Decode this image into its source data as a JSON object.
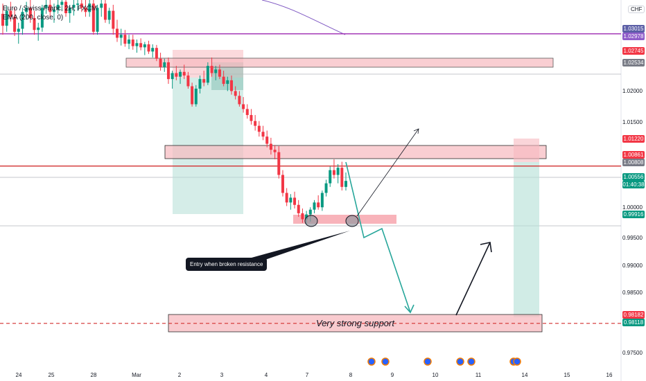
{
  "header": {
    "symbol_line": "Euro / Swiss Franc, 2H, FXCM",
    "indicator_line": "EMA (200, close, 0)",
    "currency": "CHF"
  },
  "annotations": {
    "entry_note": "Entry when broken resistance",
    "support_label": "Very strong support"
  },
  "price_labels": [
    {
      "text": "1.03015",
      "color": "#5b5ea6"
    },
    {
      "text": "1.02978",
      "color": "#8e5cc9"
    },
    {
      "text": "1.02745",
      "color": "#f23645"
    },
    {
      "text": "1.02534",
      "color": "#787b86"
    },
    {
      "text": "1.01220",
      "color": "#f23645"
    },
    {
      "text": "1.00861",
      "color": "#f23645"
    },
    {
      "text": "1.00808",
      "color": "#787b86"
    },
    {
      "text": "1.00556",
      "color": "#089981"
    },
    {
      "text": "01:40:38",
      "color": "#089981"
    },
    {
      "text": "0.99916",
      "color": "#089981"
    },
    {
      "text": "0.98182",
      "color": "#f23645"
    },
    {
      "text": "0.98118",
      "color": "#089981"
    }
  ],
  "chart_data": {
    "type": "candlestick",
    "y_ticks": [
      "1.02000",
      "1.01500",
      "1.00000",
      "0.99500",
      "0.99000",
      "0.98500",
      "0.97500"
    ],
    "x_ticks": [
      "24",
      "25",
      "28",
      "Mar",
      "2",
      "3",
      "4",
      "7",
      "8",
      "9",
      "10",
      "11",
      "14",
      "15",
      "16"
    ],
    "ylim": [
      0.9722,
      1.0358
    ],
    "candles": [
      [
        1.0335,
        1.0352,
        1.03,
        1.0315
      ],
      [
        1.0315,
        1.0348,
        1.0305,
        1.034
      ],
      [
        1.034,
        1.0355,
        1.0322,
        1.033
      ],
      [
        1.033,
        1.0345,
        1.0298,
        1.0305
      ],
      [
        1.0305,
        1.032,
        1.0285,
        1.031
      ],
      [
        1.031,
        1.0345,
        1.03,
        1.0338
      ],
      [
        1.0338,
        1.0355,
        1.0325,
        1.0345
      ],
      [
        1.0345,
        1.0358,
        1.032,
        1.0328
      ],
      [
        1.0328,
        1.034,
        1.03,
        1.0308
      ],
      [
        1.0308,
        1.032,
        1.029,
        1.0312
      ],
      [
        1.0312,
        1.035,
        1.0305,
        1.0345
      ],
      [
        1.0345,
        1.0358,
        1.0335,
        1.035
      ],
      [
        1.035,
        1.0358,
        1.033,
        1.0338
      ],
      [
        1.0338,
        1.0352,
        1.032,
        1.0342
      ],
      [
        1.0342,
        1.0358,
        1.0335,
        1.035
      ],
      [
        1.035,
        1.0358,
        1.034,
        1.0355
      ],
      [
        1.0355,
        1.0358,
        1.033,
        1.0336
      ],
      [
        1.0336,
        1.035,
        1.032,
        1.0345
      ],
      [
        1.0345,
        1.0358,
        1.0332,
        1.035
      ],
      [
        1.035,
        1.0358,
        1.034,
        1.0352
      ],
      [
        1.0352,
        1.0358,
        1.0338,
        1.0345
      ],
      [
        1.0345,
        1.0358,
        1.033,
        1.0338
      ],
      [
        1.0338,
        1.0358,
        1.033,
        1.0352
      ],
      [
        1.0352,
        1.0358,
        1.03,
        1.0305
      ],
      [
        1.0305,
        1.035,
        1.03,
        1.0345
      ],
      [
        1.0345,
        1.0358,
        1.033,
        1.0352
      ],
      [
        1.0352,
        1.0358,
        1.032,
        1.0325
      ],
      [
        1.0325,
        1.0345,
        1.0318,
        1.034
      ],
      [
        1.034,
        1.035,
        1.03,
        1.031
      ],
      [
        1.031,
        1.0325,
        1.0288,
        1.0295
      ],
      [
        1.0295,
        1.031,
        1.0282,
        1.03
      ],
      [
        1.03,
        1.0308,
        1.028,
        1.0285
      ],
      [
        1.0285,
        1.03,
        1.0276,
        1.0292
      ],
      [
        1.0292,
        1.03,
        1.0275,
        1.0281
      ],
      [
        1.0281,
        1.0292,
        1.027,
        1.0286
      ],
      [
        1.0286,
        1.0294,
        1.0274,
        1.0279
      ],
      [
        1.0279,
        1.0288,
        1.0266,
        1.0284
      ],
      [
        1.0284,
        1.029,
        1.0268,
        1.0272
      ],
      [
        1.0272,
        1.0284,
        1.0262,
        1.0278
      ],
      [
        1.0278,
        1.0283,
        1.0256,
        1.026
      ],
      [
        1.026,
        1.027,
        1.024,
        1.0246
      ],
      [
        1.0246,
        1.026,
        1.0238,
        1.0254
      ],
      [
        1.0254,
        1.0262,
        1.0218,
        1.0226
      ],
      [
        1.0226,
        1.024,
        1.021,
        1.0236
      ],
      [
        1.0236,
        1.0248,
        1.0224,
        1.023
      ],
      [
        1.023,
        1.0242,
        1.0218,
        1.0238
      ],
      [
        1.0238,
        1.025,
        1.0226,
        1.0232
      ],
      [
        1.0232,
        1.0238,
        1.021,
        1.0214
      ],
      [
        1.0214,
        1.022,
        1.018,
        1.0184
      ],
      [
        1.0184,
        1.0216,
        1.018,
        1.021
      ],
      [
        1.021,
        1.0232,
        1.0202,
        1.0226
      ],
      [
        1.0226,
        1.024,
        1.0214,
        1.022
      ],
      [
        1.022,
        1.0254,
        1.0216,
        1.0248
      ],
      [
        1.0248,
        1.0262,
        1.023,
        1.0236
      ],
      [
        1.0236,
        1.0248,
        1.0224,
        1.0242
      ],
      [
        1.0242,
        1.025,
        1.0226,
        1.023
      ],
      [
        1.023,
        1.024,
        1.0214,
        1.0218
      ],
      [
        1.0218,
        1.023,
        1.0206,
        1.0224
      ],
      [
        1.0224,
        1.0232,
        1.02,
        1.0206
      ],
      [
        1.0206,
        1.0214,
        1.0192,
        1.0198
      ],
      [
        1.0198,
        1.0206,
        1.018,
        1.0184
      ],
      [
        1.0184,
        1.0196,
        1.017,
        1.0176
      ],
      [
        1.0176,
        1.0184,
        1.016,
        1.0166
      ],
      [
        1.0166,
        1.0176,
        1.015,
        1.0156
      ],
      [
        1.0156,
        1.0166,
        1.014,
        1.0148
      ],
      [
        1.0148,
        1.0156,
        1.013,
        1.0138
      ],
      [
        1.0138,
        1.0148,
        1.0124,
        1.013
      ],
      [
        1.013,
        1.014,
        1.0112,
        1.0118
      ],
      [
        1.0118,
        1.0128,
        1.01,
        1.0108
      ],
      [
        1.0108,
        1.0116,
        1.0092,
        1.0104
      ],
      [
        1.0104,
        1.0114,
        1.006,
        1.0066
      ],
      [
        1.0066,
        1.0074,
        1.003,
        1.0036
      ],
      [
        1.0036,
        1.0044,
        1.0014,
        1.002
      ],
      [
        1.002,
        1.0034,
        1.0008,
        1.0028
      ],
      [
        1.0028,
        1.0038,
        1.001,
        1.0016
      ],
      [
        1.0016,
        1.0024,
        0.9996,
        1.0002
      ],
      [
        1.0002,
        1.001,
        0.9986,
        0.9992
      ],
      [
        0.9992,
        1.0006,
        0.9984,
        1.0
      ],
      [
        1.0,
        1.0012,
        0.9988,
        1.0008
      ],
      [
        1.0008,
        1.0024,
        1.0002,
        1.002
      ],
      [
        1.002,
        1.0032,
        1.0008,
        1.0012
      ],
      [
        1.0012,
        1.004,
        1.0006,
        1.0036
      ],
      [
        1.0036,
        1.0058,
        1.003,
        1.0052
      ],
      [
        1.0052,
        1.008,
        1.0046,
        1.0074
      ],
      [
        1.0074,
        1.0092,
        1.006,
        1.0066
      ],
      [
        1.0066,
        1.0084,
        1.0052,
        1.0078
      ],
      [
        1.0078,
        1.0088,
        1.004,
        1.0046
      ],
      [
        1.0046,
        1.007,
        1.004,
        1.0056
      ]
    ],
    "horizontal_lines": [
      {
        "price": 1.03015,
        "color": "#9c27b0",
        "style": "solid"
      },
      {
        "price": 1.00808,
        "color": "#d32f2f",
        "style": "solid"
      },
      {
        "price": 0.98182,
        "color": "#d32f2f",
        "style": "dashed"
      }
    ]
  }
}
